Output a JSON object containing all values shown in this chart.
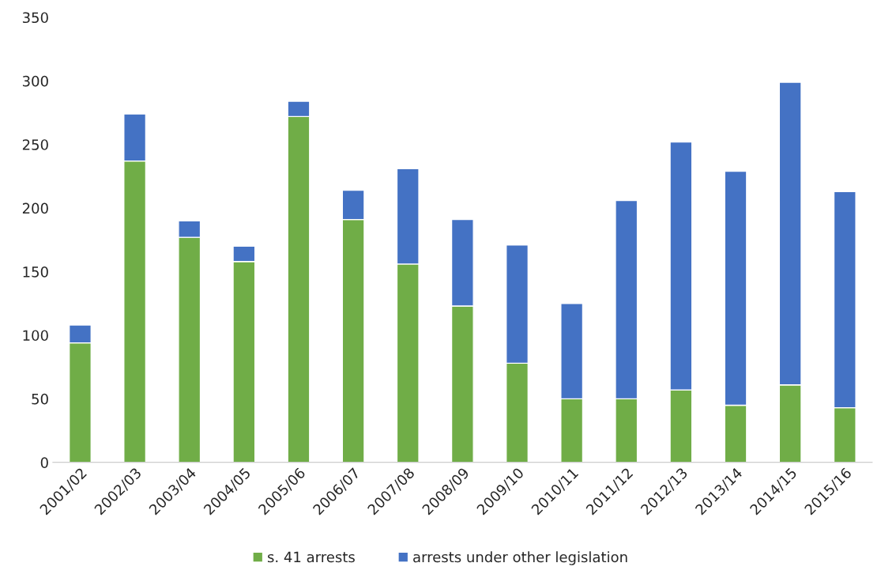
{
  "chart_data": {
    "type": "bar",
    "stacked": true,
    "categories": [
      "2001/02",
      "2002/03",
      "2003/04",
      "2004/05",
      "2005/06",
      "2006/07",
      "2007/08",
      "2008/09",
      "2009/10",
      "2010/11",
      "2011/12",
      "2012/13",
      "2013/14",
      "2014/15",
      "2015/16"
    ],
    "series": [
      {
        "name": "s. 41 arrests",
        "color": "#70ad47",
        "values": [
          94,
          237,
          177,
          158,
          272,
          191,
          156,
          123,
          78,
          50,
          50,
          57,
          45,
          61,
          43
        ]
      },
      {
        "name": "arrests under other legislation",
        "color": "#4472c4",
        "values": [
          14,
          37,
          13,
          12,
          12,
          23,
          75,
          68,
          93,
          75,
          156,
          195,
          184,
          238,
          170
        ]
      }
    ],
    "ylim": [
      0,
      350
    ],
    "yticks": [
      0,
      50,
      100,
      150,
      200,
      250,
      300,
      350
    ],
    "grid": false,
    "legend": "bottom"
  }
}
